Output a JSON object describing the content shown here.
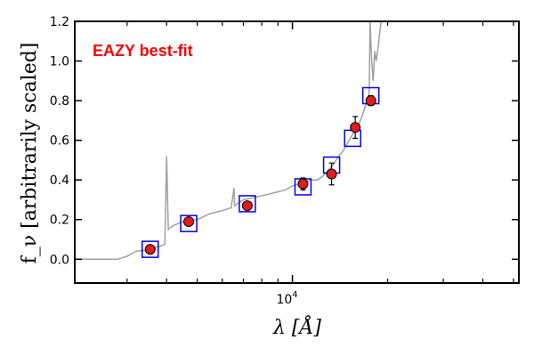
{
  "chart_data": {
    "type": "scatter",
    "title": "",
    "annotation": "EAZY best-fit",
    "annotation_color": "#ff0000",
    "xlabel": "λ [Å]",
    "ylabel": "f_ν [arbitrarily scaled]",
    "xscale": "log",
    "xlim": [
      2050,
      52000
    ],
    "ylim": [
      -0.12,
      1.2
    ],
    "yticks": [
      0.0,
      0.2,
      0.4,
      0.6,
      0.8,
      1.0,
      1.2
    ],
    "ytick_labels": [
      "0.0",
      "0.2",
      "0.4",
      "0.6",
      "0.8",
      "1.0",
      "1.2"
    ],
    "xtick_major": [
      {
        "value": 10000,
        "label": "10^4"
      }
    ],
    "xtick_minor": [
      3000,
      4000,
      5000,
      6000,
      7000,
      8000,
      9000,
      20000,
      30000,
      40000,
      50000
    ],
    "colors": {
      "model": "#a0a0a0",
      "observed_fill": "#e41a1c",
      "model_box": "#0000ee"
    },
    "series": [
      {
        "name": "observed photometry",
        "points": [
          {
            "x": 3550,
            "y": 0.05,
            "yerr": 0.015
          },
          {
            "x": 4700,
            "y": 0.19,
            "yerr": 0.012
          },
          {
            "x": 7200,
            "y": 0.27,
            "yerr": 0.01
          },
          {
            "x": 10800,
            "y": 0.38,
            "yerr": 0.03
          },
          {
            "x": 13300,
            "y": 0.43,
            "yerr": 0.055
          },
          {
            "x": 15800,
            "y": 0.665,
            "yerr": 0.055
          },
          {
            "x": 17700,
            "y": 0.8,
            "yerr": 0.025
          }
        ]
      },
      {
        "name": "model photometry",
        "points": [
          {
            "x": 3550,
            "y": 0.05
          },
          {
            "x": 4700,
            "y": 0.18
          },
          {
            "x": 7200,
            "y": 0.28
          },
          {
            "x": 10800,
            "y": 0.365
          },
          {
            "x": 13300,
            "y": 0.475
          },
          {
            "x": 15500,
            "y": 0.61
          },
          {
            "x": 17700,
            "y": 0.825
          }
        ]
      },
      {
        "name": "EAZY best-fit template",
        "x": [
          2050,
          2800,
          3000,
          3200,
          3400,
          3600,
          3800,
          3950,
          4000,
          4050,
          4200,
          4500,
          4800,
          5000,
          5500,
          6000,
          6400,
          6540,
          6560,
          6580,
          6700,
          7000,
          7500,
          8000,
          8500,
          9000,
          9500,
          10000,
          10500,
          11000,
          11500,
          12000,
          12500,
          13000,
          13500,
          14000,
          14500,
          15000,
          15500,
          16000,
          16500,
          17000,
          17300,
          17500,
          17600,
          17800,
          18000,
          18200,
          18400,
          18700,
          18900,
          19100,
          19300,
          19500
        ],
        "y": [
          0.0,
          0.0,
          0.015,
          0.04,
          0.045,
          0.055,
          0.065,
          0.075,
          0.52,
          0.15,
          0.17,
          0.19,
          0.195,
          0.2,
          0.23,
          0.245,
          0.26,
          0.36,
          0.27,
          0.27,
          0.28,
          0.3,
          0.31,
          0.32,
          0.33,
          0.34,
          0.35,
          0.37,
          0.38,
          0.39,
          0.4,
          0.4,
          0.42,
          0.45,
          0.48,
          0.52,
          0.55,
          0.59,
          0.63,
          0.66,
          0.71,
          0.77,
          0.8,
          0.85,
          1.2,
          1.0,
          0.9,
          1.05,
          1.0,
          1.08,
          1.15,
          1.2,
          1.2,
          1.2
        ]
      }
    ]
  }
}
